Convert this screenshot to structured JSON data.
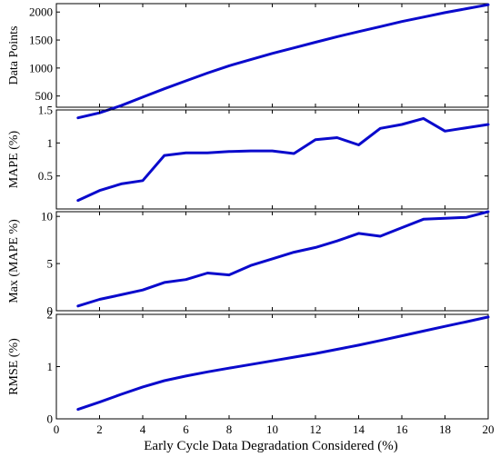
{
  "chart_data": {
    "type": "line",
    "xlabel": "Early Cycle Data Degradation Considered (%)",
    "xlim": [
      0,
      20
    ],
    "xticks": [
      0,
      2,
      4,
      6,
      8,
      10,
      12,
      14,
      16,
      18,
      20
    ],
    "line_color": "#0a0acc",
    "x": [
      1,
      2,
      3,
      4,
      5,
      6,
      7,
      8,
      9,
      10,
      11,
      12,
      13,
      14,
      15,
      16,
      17,
      18,
      19,
      20
    ],
    "panels": [
      {
        "ylabel": "Data Points",
        "ylim": [
          300,
          2150
        ],
        "yticks": [
          500,
          1000,
          1500,
          2000
        ],
        "values": [
          110,
          200,
          330,
          480,
          630,
          770,
          910,
          1040,
          1150,
          1260,
          1360,
          1460,
          1560,
          1650,
          1740,
          1830,
          1910,
          1990,
          2060,
          2130
        ]
      },
      {
        "ylabel": "MAPE (%)",
        "ylim": [
          0,
          1.5
        ],
        "yticks": [
          0.5,
          1,
          1.5
        ],
        "values": [
          0.13,
          0.28,
          0.38,
          0.43,
          0.81,
          0.85,
          0.85,
          0.87,
          0.88,
          0.88,
          0.84,
          1.05,
          1.08,
          0.97,
          1.22,
          1.28,
          1.37,
          1.18,
          1.23,
          1.28
        ]
      },
      {
        "ylabel": "Max (MAPE %)",
        "ylim": [
          0,
          10.5
        ],
        "yticks": [
          0,
          5,
          10
        ],
        "values": [
          0.5,
          1.2,
          1.7,
          2.2,
          3.0,
          3.3,
          4.0,
          3.8,
          4.8,
          5.5,
          6.2,
          6.7,
          7.4,
          8.2,
          7.9,
          8.8,
          9.7,
          9.8,
          9.9,
          10.5
        ]
      },
      {
        "ylabel": "RMSE (%)",
        "ylim": [
          0,
          2
        ],
        "yticks": [
          0,
          1,
          2
        ],
        "values": [
          0.18,
          0.32,
          0.47,
          0.61,
          0.73,
          0.82,
          0.9,
          0.97,
          1.04,
          1.11,
          1.18,
          1.25,
          1.33,
          1.41,
          1.5,
          1.59,
          1.68,
          1.77,
          1.86,
          1.95
        ]
      }
    ]
  }
}
